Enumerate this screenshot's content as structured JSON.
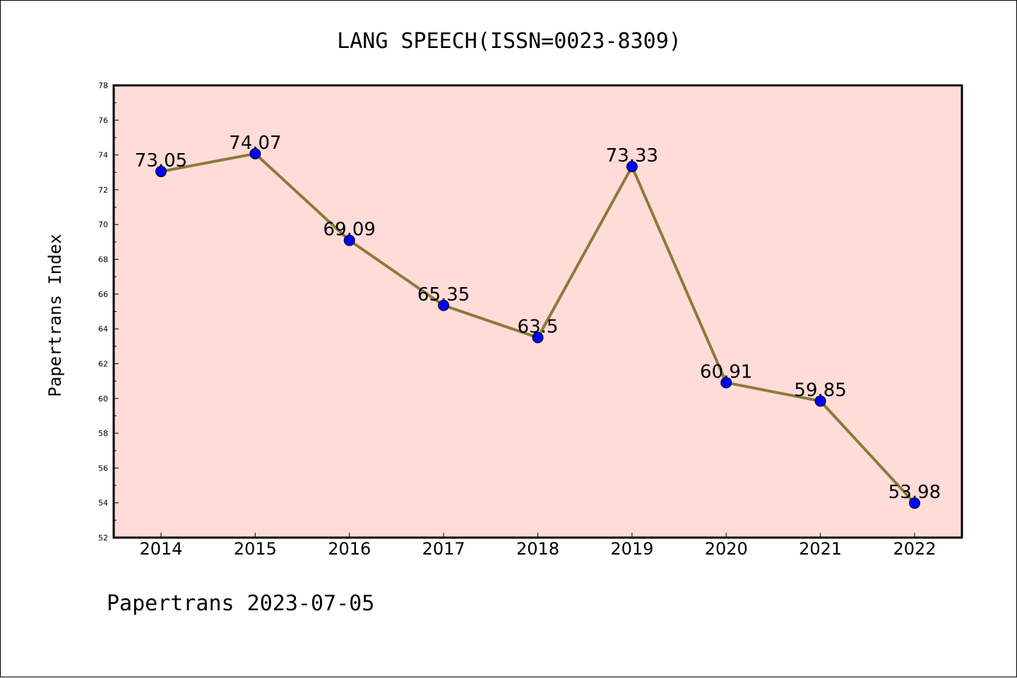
{
  "chart_data": {
    "type": "line",
    "title": "LANG SPEECH(ISSN=0023-8309)",
    "ylabel": "Papertrans Index",
    "xlabel": "",
    "x": [
      "2014",
      "2015",
      "2016",
      "2017",
      "2018",
      "2019",
      "2020",
      "2021",
      "2022"
    ],
    "series": [
      {
        "values": [
          73.05,
          74.07,
          69.09,
          65.35,
          63.5,
          73.33,
          60.91,
          59.85,
          53.98
        ],
        "labels": [
          "73.05",
          "74.07",
          "69.09",
          "65.35",
          "63.5",
          "73.33",
          "60.91",
          "59.85",
          "53.98"
        ]
      }
    ],
    "ylim": [
      52,
      78
    ],
    "yticks": [
      "52",
      "54",
      "56",
      "58",
      "60",
      "62",
      "64",
      "66",
      "68",
      "70",
      "72",
      "74",
      "76",
      "78"
    ],
    "grid": false,
    "colors": {
      "plot_background": "#ffdcd8",
      "line": "#8b7a3a",
      "marker": "#0000ff"
    }
  },
  "footer": "Papertrans 2023-07-05"
}
